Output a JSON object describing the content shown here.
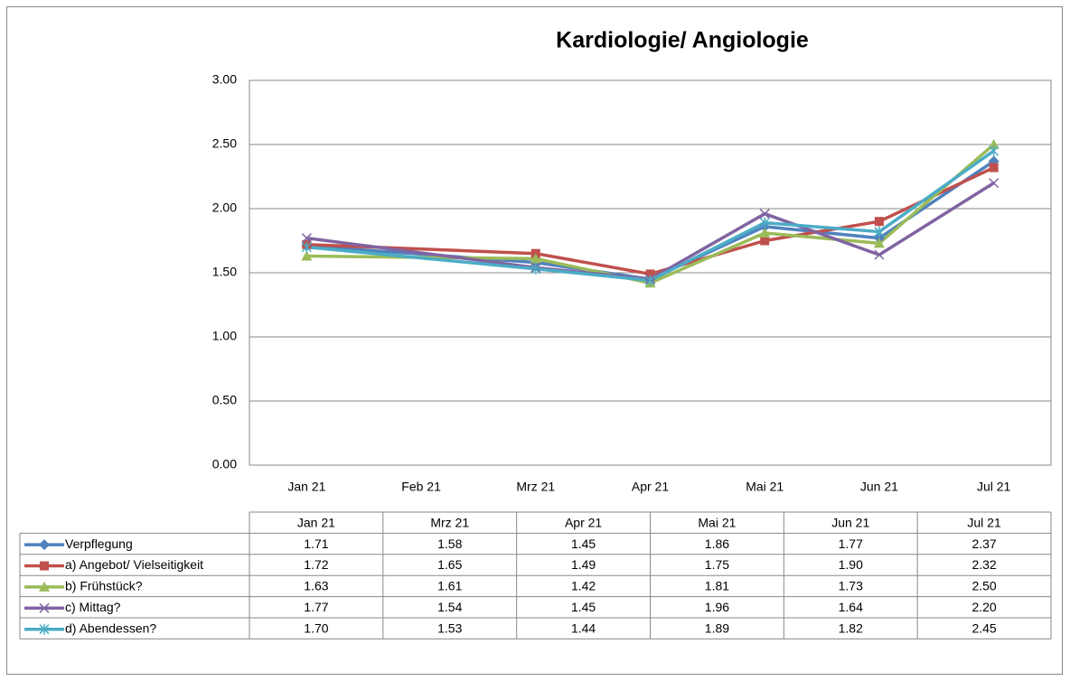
{
  "chart_data": {
    "type": "line",
    "title": "Kardiologie/ Angiologie",
    "xticks": [
      "Jan 21",
      "Feb 21",
      "Mrz 21",
      "Apr 21",
      "Mai 21",
      "Jun 21",
      "Jul 21"
    ],
    "categories": [
      "Jan 21",
      "Mrz 21",
      "Apr 21",
      "Mai 21",
      "Jun 21",
      "Jul 21"
    ],
    "ylim": [
      0,
      3
    ],
    "yticks": [
      {
        "value": 0,
        "label": "0.00"
      },
      {
        "value": 0.5,
        "label": "0.50"
      },
      {
        "value": 1,
        "label": "1.00"
      },
      {
        "value": 1.5,
        "label": "1.50"
      },
      {
        "value": 2,
        "label": "2.00"
      },
      {
        "value": 2.5,
        "label": "2.50"
      },
      {
        "value": 3,
        "label": "3.00"
      }
    ],
    "grid": true,
    "series": [
      {
        "name": "Verpflegung",
        "color": "#4f81bd",
        "marker": "diamond",
        "values": [
          1.71,
          1.58,
          1.45,
          1.86,
          1.77,
          2.37
        ],
        "value_labels": [
          "1.71",
          "1.58",
          "1.45",
          "1.86",
          "1.77",
          "2.37"
        ]
      },
      {
        "name": "a) Angebot/ Vielseitigkeit",
        "color": "#c0504d",
        "marker": "square",
        "values": [
          1.72,
          1.65,
          1.49,
          1.75,
          1.9,
          2.32
        ],
        "value_labels": [
          "1.72",
          "1.65",
          "1.49",
          "1.75",
          "1.90",
          "2.32"
        ]
      },
      {
        "name": "b) Frühstück?",
        "color": "#9bbb59",
        "marker": "triangle",
        "values": [
          1.63,
          1.61,
          1.42,
          1.81,
          1.73,
          2.5
        ],
        "value_labels": [
          "1.63",
          "1.61",
          "1.42",
          "1.81",
          "1.73",
          "2.50"
        ]
      },
      {
        "name": "c) Mittag?",
        "color": "#8064a2",
        "marker": "x",
        "values": [
          1.77,
          1.54,
          1.45,
          1.96,
          1.64,
          2.2
        ],
        "value_labels": [
          "1.77",
          "1.54",
          "1.45",
          "1.96",
          "1.64",
          "2.20"
        ]
      },
      {
        "name": "d) Abendessen?",
        "color": "#4bacc6",
        "marker": "star",
        "values": [
          1.7,
          1.53,
          1.44,
          1.89,
          1.82,
          2.45
        ],
        "value_labels": [
          "1.70",
          "1.53",
          "1.44",
          "1.89",
          "1.82",
          "2.45"
        ]
      }
    ]
  }
}
